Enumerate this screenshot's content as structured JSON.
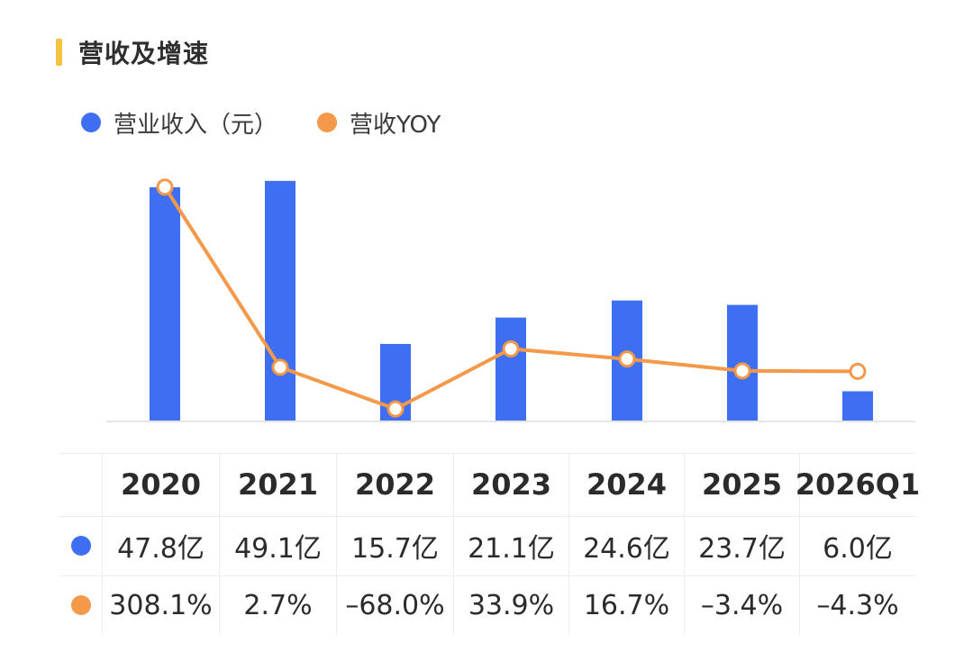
{
  "header": {
    "title": "营收及增速"
  },
  "colors": {
    "revenue": "#3e6ff2",
    "yoy": "#f4994a",
    "title_bar": "#f5c242"
  },
  "chart_data": {
    "type": "bar",
    "categories": [
      "2020",
      "2021",
      "2022",
      "2023",
      "2024",
      "2025",
      "2026Q1"
    ],
    "series": [
      {
        "name": "营业收入（元）",
        "type": "bar",
        "values": [
          47.8,
          49.1,
          15.7,
          21.1,
          24.6,
          23.7,
          6.0
        ]
      },
      {
        "name": "营收YOY",
        "type": "line",
        "values": [
          308.1,
          2.7,
          -68.0,
          33.9,
          16.7,
          -3.4,
          -4.3
        ]
      }
    ],
    "legend": "top-left",
    "grid": false
  },
  "table": {
    "years": [
      "2020",
      "2021",
      "2022",
      "2023",
      "2024",
      "2025",
      "2026Q1"
    ],
    "revenue": [
      "47.8亿",
      "49.1亿",
      "15.7亿",
      "21.1亿",
      "24.6亿",
      "23.7亿",
      "6.0亿"
    ],
    "yoy": [
      "308.1%",
      "2.7%",
      "–68.0%",
      "33.9%",
      "16.7%",
      "–3.4%",
      "–4.3%"
    ]
  }
}
